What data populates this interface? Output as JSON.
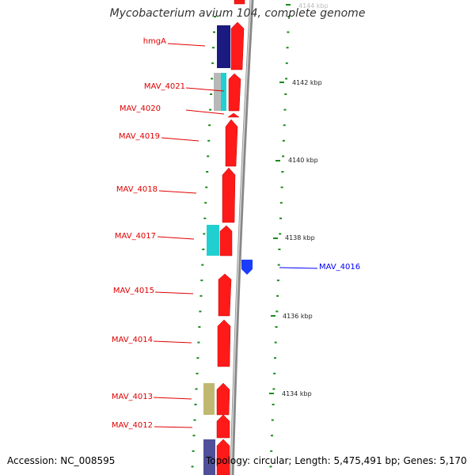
{
  "title": "Mycobacterium avium 104, complete genome",
  "footer": {
    "accession": "Accession: NC_008595",
    "topology": "Topology: circular; Length: 5,475,491 bp; Genes: 5,170"
  },
  "scale_labels": [
    "4144 kbp",
    "4142 kbp",
    "4140 kbp",
    "4138 kbp",
    "4136 kbp",
    "4134 kbp"
  ],
  "gene_labels": [
    "hmgA",
    "MAV_4021",
    "MAV_4020",
    "MAV_4019",
    "MAV_4018",
    "MAV_4017",
    "MAV_4015",
    "MAV_4014",
    "MAV_4013",
    "MAV_4012"
  ],
  "reverse_gene_label": "MAV_4016",
  "colors": {
    "forward_gene": "#ff1a1a",
    "reverse_gene": "#1a3cff",
    "backbone": "#888888",
    "tick": "#1a8a1a",
    "label_red": "#e00000",
    "label_blue": "#0000ff",
    "navy_feature": "#1a1a80",
    "cyan_feature": "#20d0d0",
    "gray_feature": "#b8b8b8",
    "khaki_feature": "#c0b870",
    "slate_feature": "#50509a"
  }
}
